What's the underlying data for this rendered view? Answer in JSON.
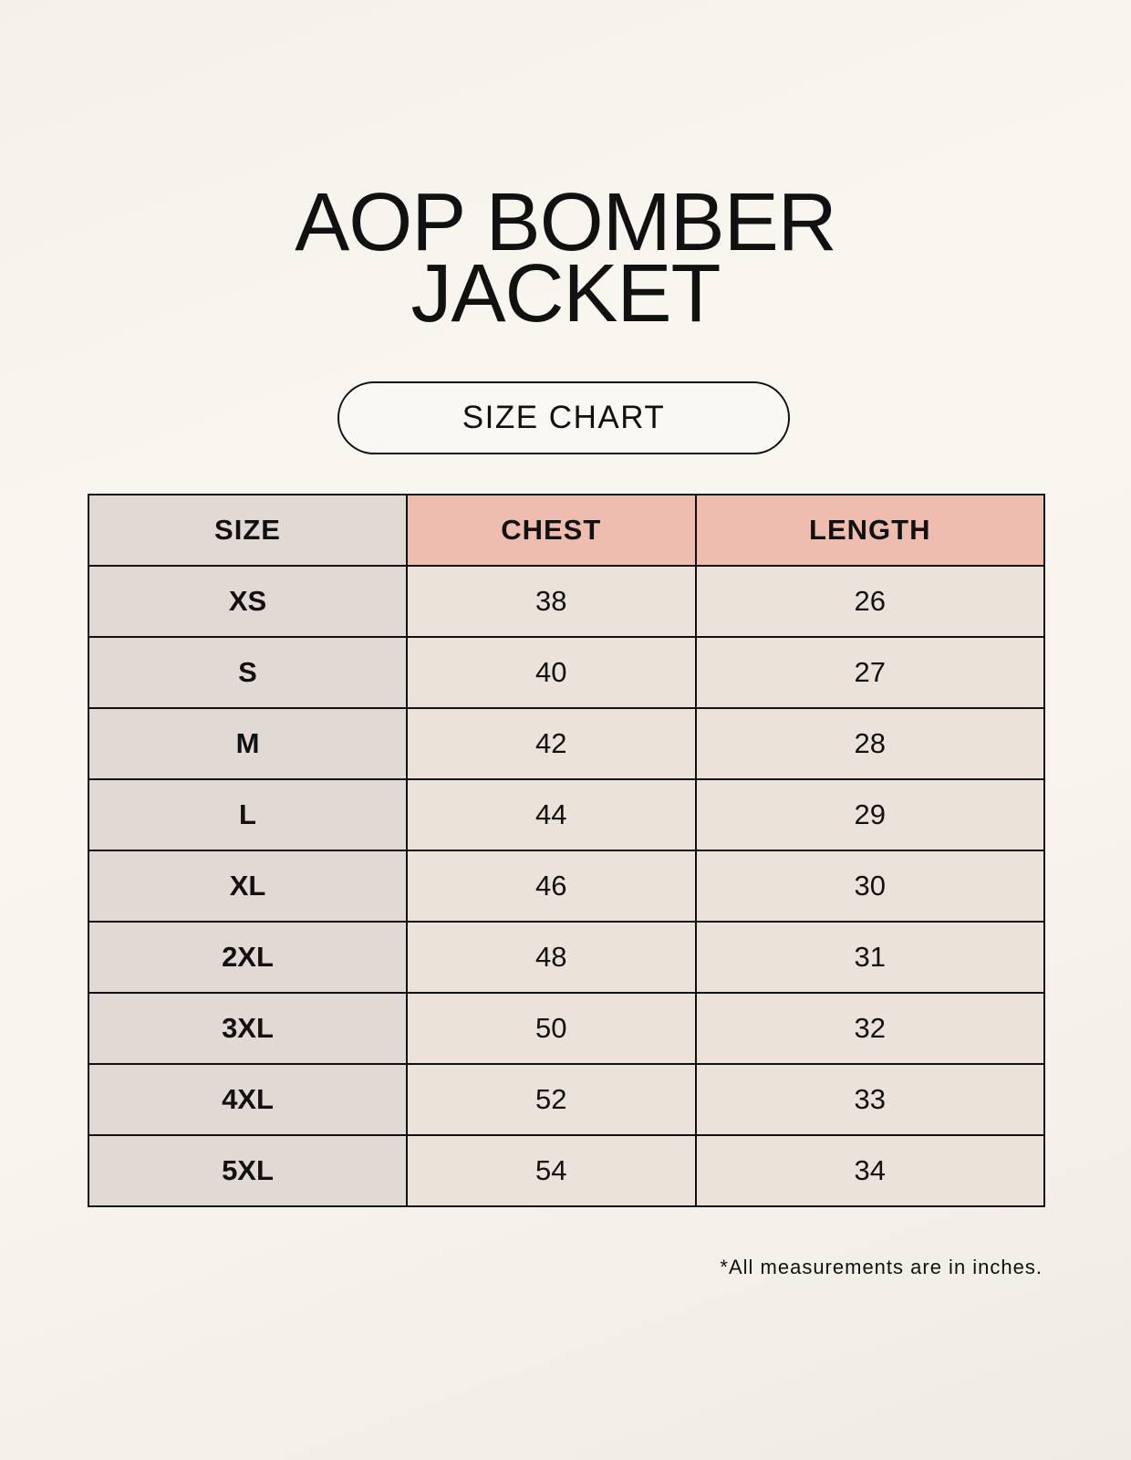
{
  "title_lines": [
    "AOP BOMBER",
    "JACKET"
  ],
  "subtitle": "SIZE CHART",
  "table": {
    "headers": [
      "SIZE",
      "CHEST",
      "LENGTH"
    ],
    "rows": [
      [
        "XS",
        "38",
        "26"
      ],
      [
        "S",
        "40",
        "27"
      ],
      [
        "M",
        "42",
        "28"
      ],
      [
        "L",
        "44",
        "29"
      ],
      [
        "XL",
        "46",
        "30"
      ],
      [
        "2XL",
        "48",
        "31"
      ],
      [
        "3XL",
        "50",
        "32"
      ],
      [
        "4XL",
        "52",
        "33"
      ],
      [
        "5XL",
        "54",
        "34"
      ]
    ]
  },
  "footnote": "*All measurements are in inches.",
  "colors": {
    "size_column": "#e1d9d3",
    "header_accent": "#eebdb0",
    "value_cells": "#ebe3d9"
  }
}
